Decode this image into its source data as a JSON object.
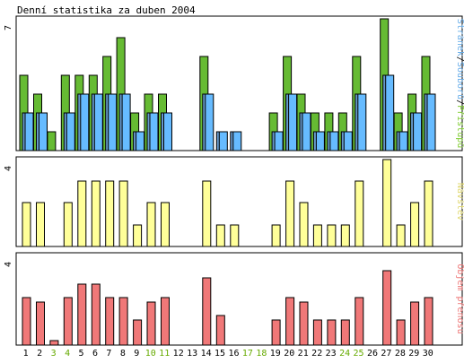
{
  "title": "Denní statistika za duben 2004",
  "chart_data": {
    "type": "bar",
    "title": "Denní statistika za duben 2004",
    "categories": [
      "1",
      "2",
      "3",
      "4",
      "5",
      "6",
      "7",
      "8",
      "9",
      "10",
      "11",
      "12",
      "13",
      "14",
      "15",
      "16",
      "17",
      "18",
      "19",
      "20",
      "21",
      "22",
      "23",
      "24",
      "25",
      "26",
      "27",
      "28",
      "29",
      "30"
    ],
    "weekend_days": [
      "3",
      "4",
      "10",
      "11",
      "17",
      "18",
      "24",
      "25"
    ],
    "panels": [
      {
        "id": "hits",
        "ymax_label": "7",
        "ylim": [
          0,
          7
        ],
        "legend_parts": [
          {
            "text": "Stránek",
            "color": "#6aafea"
          },
          {
            "text": "/",
            "color": "#000000"
          },
          {
            "text": "Souborů",
            "color": "#6aafea"
          },
          {
            "text": "/",
            "color": "#000000"
          },
          {
            "text": "Přístupů",
            "color": "#80cc33"
          }
        ],
        "series": [
          {
            "name": "Přístupů",
            "color": "#66bb33",
            "values": [
              4,
              3,
              1,
              4,
              4,
              4,
              5,
              6,
              2,
              3,
              3,
              0,
              0,
              5,
              0,
              0,
              0,
              0,
              2,
              5,
              3,
              2,
              2,
              2,
              5,
              0,
              7,
              2,
              3,
              5
            ]
          },
          {
            "name": "Souborů",
            "color": "#6699cc",
            "values": [
              2,
              2,
              0,
              2,
              3,
              3,
              3,
              3,
              1,
              2,
              2,
              0,
              0,
              3,
              1,
              1,
              0,
              0,
              1,
              3,
              2,
              1,
              1,
              1,
              3,
              0,
              4,
              1,
              2,
              3
            ]
          },
          {
            "name": "Stránek",
            "color": "#66bbff",
            "values": [
              2,
              2,
              0,
              2,
              3,
              3,
              3,
              3,
              1,
              2,
              2,
              0,
              0,
              3,
              1,
              1,
              0,
              0,
              1,
              3,
              2,
              1,
              1,
              1,
              3,
              0,
              4,
              1,
              2,
              3
            ]
          }
        ]
      },
      {
        "id": "visits",
        "ymax_label": "4",
        "ylim": [
          0,
          4
        ],
        "legend_parts": [
          {
            "text": "Návštěv",
            "color": "#e0d870"
          }
        ],
        "series": [
          {
            "name": "Návštěv",
            "color": "#ffff99",
            "values": [
              2,
              2,
              0,
              2,
              3,
              3,
              3,
              3,
              1,
              2,
              2,
              0,
              0,
              3,
              1,
              1,
              0,
              0,
              1,
              3,
              2,
              1,
              1,
              1,
              3,
              0,
              4,
              1,
              2,
              3
            ]
          }
        ]
      },
      {
        "id": "kbytes",
        "ymax_label": "4",
        "ylim": [
          0,
          4
        ],
        "legend_parts": [
          {
            "text": "Objem přenosu",
            "color": "#ee7777"
          }
        ],
        "series": [
          {
            "name": "Objem přenosu",
            "color": "#f07878",
            "values": [
              2.1,
              1.9,
              0.2,
              2.1,
              2.7,
              2.7,
              2.1,
              2.1,
              1.1,
              1.9,
              2.1,
              0,
              0,
              3.0,
              1.3,
              0,
              0,
              0,
              1.1,
              2.1,
              1.9,
              1.1,
              1.1,
              1.1,
              2.1,
              0,
              3.3,
              1.1,
              1.9,
              2.1
            ]
          }
        ]
      }
    ],
    "grid": false,
    "legend": "right-vertical"
  }
}
